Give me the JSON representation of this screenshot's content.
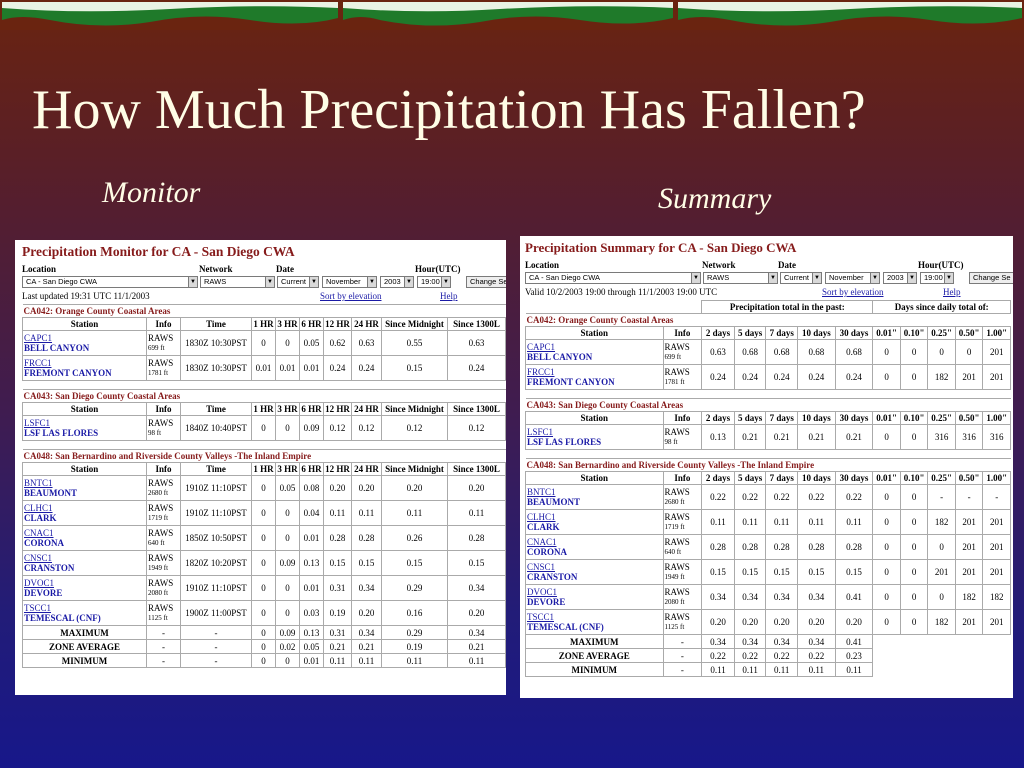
{
  "colors": {
    "title_text": "#fffde6",
    "panel_title": "#861b1b",
    "link": "#1a1aa6",
    "banner_sky": "#1f7a2a"
  },
  "slide": {
    "title": "How Much Precipitation Has Fallen?",
    "left_label": "Monitor",
    "right_label": "Summary"
  },
  "monitor": {
    "title": "Precipitation Monitor for CA - San Diego CWA",
    "controls": {
      "location_label": "Location",
      "network_label": "Network",
      "date_label": "Date",
      "hour_label": "Hour(UTC)",
      "location_value": "CA - San Diego CWA",
      "network_value": "RAWS",
      "date_mode": "Current",
      "month": "November",
      "year": "2003",
      "hour": "19:00",
      "change_button": "Change Se"
    },
    "last_updated": "Last updated 19:31 UTC 11/1/2003",
    "sort_link": "Sort by elevation",
    "help_link": "Help",
    "headers": [
      "Station",
      "Info",
      "Time",
      "1 HR",
      "3 HR",
      "6 HR",
      "12 HR",
      "24 HR",
      "Since Midnight",
      "Since 1300L"
    ],
    "zones": [
      {
        "name": "CA042: Orange County Coastal Areas",
        "stations": [
          {
            "id": "CAPC1",
            "name": "BELL CANYON",
            "network": "RAWS",
            "elev": "699 ft",
            "time": "1830Z 10:30PST",
            "values": [
              "0",
              "0",
              "0.05",
              "0.62",
              "0.63",
              "0.55",
              "0.63"
            ]
          },
          {
            "id": "FRCC1",
            "name": "FREMONT CANYON",
            "network": "RAWS",
            "elev": "1781 ft",
            "time": "1830Z 10:30PST",
            "values": [
              "0.01",
              "0.01",
              "0.01",
              "0.24",
              "0.24",
              "0.15",
              "0.24"
            ]
          }
        ]
      },
      {
        "name": "CA043: San Diego County Coastal Areas",
        "stations": [
          {
            "id": "LSFC1",
            "name": "LSF LAS FLORES",
            "network": "RAWS",
            "elev": "98 ft",
            "time": "1840Z 10:40PST",
            "values": [
              "0",
              "0",
              "0.09",
              "0.12",
              "0.12",
              "0.12",
              "0.12"
            ]
          }
        ]
      },
      {
        "name": "CA048: San Bernardino and Riverside County Valleys -The Inland Empire",
        "stations": [
          {
            "id": "BNTC1",
            "name": "BEAUMONT",
            "network": "RAWS",
            "elev": "2680 ft",
            "time": "1910Z 11:10PST",
            "values": [
              "0",
              "0.05",
              "0.08",
              "0.20",
              "0.20",
              "0.20",
              "0.20"
            ]
          },
          {
            "id": "CLHC1",
            "name": "CLARK",
            "network": "RAWS",
            "elev": "1719 ft",
            "time": "1910Z 11:10PST",
            "values": [
              "0",
              "0",
              "0.04",
              "0.11",
              "0.11",
              "0.11",
              "0.11"
            ]
          },
          {
            "id": "CNAC1",
            "name": "CORONA",
            "network": "RAWS",
            "elev": "640 ft",
            "time": "1850Z 10:50PST",
            "values": [
              "0",
              "0",
              "0.01",
              "0.28",
              "0.28",
              "0.26",
              "0.28"
            ]
          },
          {
            "id": "CNSC1",
            "name": "CRANSTON",
            "network": "RAWS",
            "elev": "1949 ft",
            "time": "1820Z 10:20PST",
            "values": [
              "0",
              "0.09",
              "0.13",
              "0.15",
              "0.15",
              "0.15",
              "0.15"
            ]
          },
          {
            "id": "DVOC1",
            "name": "DEVORE",
            "network": "RAWS",
            "elev": "2080 ft",
            "time": "1910Z 11:10PST",
            "values": [
              "0",
              "0",
              "0.01",
              "0.31",
              "0.34",
              "0.29",
              "0.34"
            ]
          },
          {
            "id": "TSCC1",
            "name": "TEMESCAL (CNF)",
            "network": "RAWS",
            "elev": "1125 ft",
            "time": "1900Z 11:00PST",
            "values": [
              "0",
              "0",
              "0.03",
              "0.19",
              "0.20",
              "0.16",
              "0.20"
            ]
          }
        ],
        "summary": [
          {
            "label": "MAXIMUM",
            "info": "-",
            "time": "-",
            "values": [
              "0",
              "0.09",
              "0.13",
              "0.31",
              "0.34",
              "0.29",
              "0.34"
            ]
          },
          {
            "label": "ZONE AVERAGE",
            "info": "-",
            "time": "-",
            "values": [
              "0",
              "0.02",
              "0.05",
              "0.21",
              "0.21",
              "0.19",
              "0.21"
            ]
          },
          {
            "label": "MINIMUM",
            "info": "-",
            "time": "-",
            "values": [
              "0",
              "0",
              "0.01",
              "0.11",
              "0.11",
              "0.11",
              "0.11"
            ]
          }
        ]
      }
    ]
  },
  "summary": {
    "title": "Precipitation Summary for CA - San Diego CWA",
    "controls": {
      "location_label": "Location",
      "network_label": "Network",
      "date_label": "Date",
      "hour_label": "Hour(UTC)",
      "location_value": "CA - San Diego CWA",
      "network_value": "RAWS",
      "date_mode": "Current",
      "month": "November",
      "year": "2003",
      "hour": "19:00",
      "change_button": "Change Se"
    },
    "valid_text": "Valid 10/2/2003 19:00 through 11/1/2003 19:00 UTC",
    "sort_link": "Sort by elevation",
    "help_link": "Help",
    "group_header_totals": "Precipitation total in the past:",
    "group_header_days": "Days since daily total of:",
    "headers": [
      "Station",
      "Info",
      "2 days",
      "5 days",
      "7 days",
      "10 days",
      "30 days",
      "0.01\"",
      "0.10\"",
      "0.25\"",
      "0.50\"",
      "1.00\""
    ],
    "zones": [
      {
        "name": "CA042: Orange County Coastal Areas",
        "stations": [
          {
            "id": "CAPC1",
            "name": "BELL CANYON",
            "network": "RAWS",
            "elev": "699 ft",
            "values": [
              "0.63",
              "0.68",
              "0.68",
              "0.68",
              "0.68",
              "0",
              "0",
              "0",
              "0",
              "201"
            ]
          },
          {
            "id": "FRCC1",
            "name": "FREMONT CANYON",
            "network": "RAWS",
            "elev": "1781 ft",
            "values": [
              "0.24",
              "0.24",
              "0.24",
              "0.24",
              "0.24",
              "0",
              "0",
              "182",
              "201",
              "201"
            ]
          }
        ]
      },
      {
        "name": "CA043: San Diego County Coastal Areas",
        "stations": [
          {
            "id": "LSFC1",
            "name": "LSF LAS FLORES",
            "network": "RAWS",
            "elev": "98 ft",
            "values": [
              "0.13",
              "0.21",
              "0.21",
              "0.21",
              "0.21",
              "0",
              "0",
              "316",
              "316",
              "316"
            ]
          }
        ]
      },
      {
        "name": "CA048: San Bernardino and Riverside County Valleys -The Inland Empire",
        "stations": [
          {
            "id": "BNTC1",
            "name": "BEAUMONT",
            "network": "RAWS",
            "elev": "2680 ft",
            "values": [
              "0.22",
              "0.22",
              "0.22",
              "0.22",
              "0.22",
              "0",
              "0",
              "-",
              "-",
              "-"
            ]
          },
          {
            "id": "CLHC1",
            "name": "CLARK",
            "network": "RAWS",
            "elev": "1719 ft",
            "values": [
              "0.11",
              "0.11",
              "0.11",
              "0.11",
              "0.11",
              "0",
              "0",
              "182",
              "201",
              "201"
            ]
          },
          {
            "id": "CNAC1",
            "name": "CORONA",
            "network": "RAWS",
            "elev": "640 ft",
            "values": [
              "0.28",
              "0.28",
              "0.28",
              "0.28",
              "0.28",
              "0",
              "0",
              "0",
              "201",
              "201"
            ]
          },
          {
            "id": "CNSC1",
            "name": "CRANSTON",
            "network": "RAWS",
            "elev": "1949 ft",
            "values": [
              "0.15",
              "0.15",
              "0.15",
              "0.15",
              "0.15",
              "0",
              "0",
              "201",
              "201",
              "201"
            ]
          },
          {
            "id": "DVOC1",
            "name": "DEVORE",
            "network": "RAWS",
            "elev": "2080 ft",
            "values": [
              "0.34",
              "0.34",
              "0.34",
              "0.34",
              "0.41",
              "0",
              "0",
              "0",
              "182",
              "182"
            ]
          },
          {
            "id": "TSCC1",
            "name": "TEMESCAL (CNF)",
            "network": "RAWS",
            "elev": "1125 ft",
            "values": [
              "0.20",
              "0.20",
              "0.20",
              "0.20",
              "0.20",
              "0",
              "0",
              "182",
              "201",
              "201"
            ]
          }
        ],
        "summary": [
          {
            "label": "MAXIMUM",
            "info": "-",
            "values": [
              "0.34",
              "0.34",
              "0.34",
              "0.34",
              "0.41"
            ]
          },
          {
            "label": "ZONE AVERAGE",
            "info": "-",
            "values": [
              "0.22",
              "0.22",
              "0.22",
              "0.22",
              "0.23"
            ]
          },
          {
            "label": "MINIMUM",
            "info": "-",
            "values": [
              "0.11",
              "0.11",
              "0.11",
              "0.11",
              "0.11"
            ]
          }
        ]
      }
    ]
  }
}
